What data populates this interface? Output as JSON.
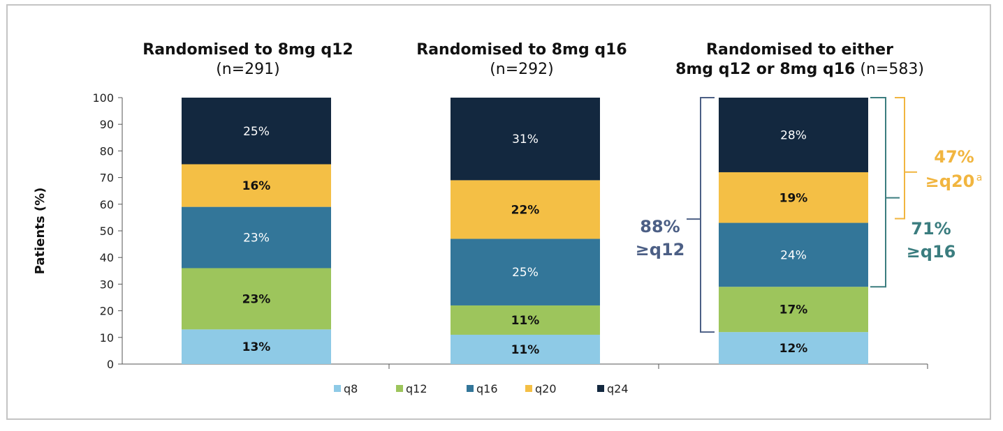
{
  "chart_data": {
    "type": "bar",
    "stacked": true,
    "ylabel": "Patients (%)",
    "ylim": [
      0,
      100
    ],
    "yticks": [
      "0",
      "10",
      "20",
      "30",
      "40",
      "50",
      "60",
      "70",
      "80",
      "90",
      "100"
    ],
    "grid": false,
    "legend_position": "bottom",
    "panels": [
      {
        "title_main": "Randomised to 8mg q12",
        "title_n": "(n=291)"
      },
      {
        "title_main": "Randomised to 8mg q16",
        "title_n": "(n=292)"
      },
      {
        "title_line1": "Randomised to either",
        "title_main": "8mg q12 or 8mg q16",
        "title_n": "(n=583)"
      }
    ],
    "series": [
      {
        "name": "q8",
        "color": "#8ecae6",
        "values": [
          13,
          11,
          12
        ],
        "labels": [
          "13%",
          "11%",
          "12%"
        ],
        "label_color": "#111111"
      },
      {
        "name": "q12",
        "color": "#9dc55c",
        "values": [
          23,
          11,
          17
        ],
        "labels": [
          "23%",
          "11%",
          "17%"
        ],
        "label_color": "#111111"
      },
      {
        "name": "q16",
        "color": "#337699",
        "values": [
          23,
          25,
          24
        ],
        "labels": [
          "23%",
          "25%",
          "24%"
        ],
        "label_color": "#ffffff"
      },
      {
        "name": "q20",
        "color": "#f4bf45",
        "values": [
          16,
          22,
          19
        ],
        "labels": [
          "16%",
          "22%",
          "19%"
        ],
        "label_color": "#111111"
      },
      {
        "name": "q24",
        "color": "#13283f",
        "values": [
          25,
          31,
          28
        ],
        "labels": [
          "25%",
          "31%",
          "28%"
        ],
        "label_color": "#ffffff"
      }
    ],
    "annotations": [
      {
        "pct": "88%",
        "label": "≥q12",
        "sup": "",
        "from": 12,
        "to": 100,
        "color": "#4c5f85"
      },
      {
        "pct": "71%",
        "label": "≥q16",
        "sup": "",
        "from": 29,
        "to": 100,
        "color": "#3b7d7f"
      },
      {
        "pct": "47%",
        "label": "≥q20",
        "sup": "a",
        "from": 53,
        "to": 100,
        "color": "#f1b53f"
      }
    ]
  }
}
